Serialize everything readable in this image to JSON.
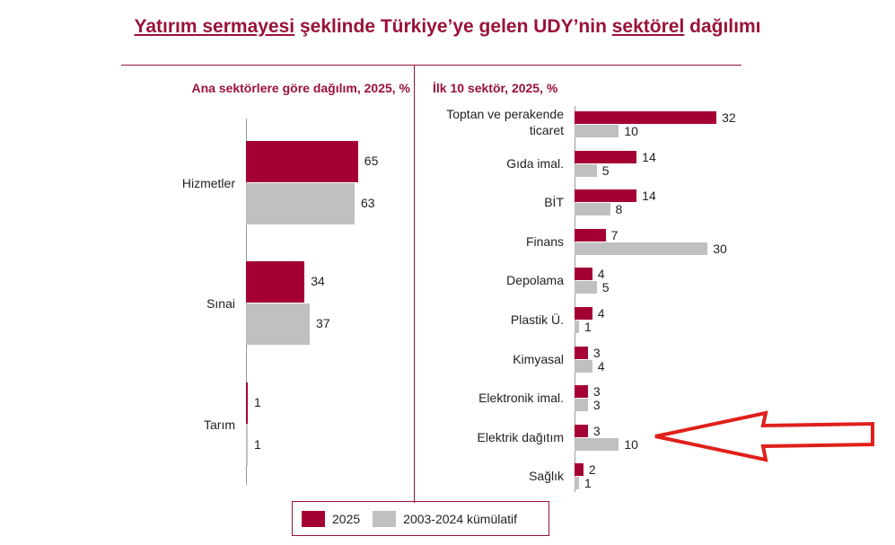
{
  "title": {
    "part1": "Yatırım sermayesi",
    "part2": " şeklinde Türkiye’ye gelen UDY’nin ",
    "part3": "sektörel",
    "part4": " dağılımı"
  },
  "colors": {
    "series_2025": "#A50034",
    "series_cum": "#C0C0C0",
    "accent": "#9A1238",
    "arrow": "#E0201B"
  },
  "legend": [
    "2025",
    "2003-2024 kümülatif"
  ],
  "annotation": {
    "type": "red-outline-arrow",
    "points_to": "Elektrik dağıtım"
  },
  "chart_data": [
    {
      "type": "bar",
      "orientation": "horizontal",
      "title": "Ana sektörlere göre dağılım, 2025, %",
      "categories": [
        "Hizmetler",
        "Sınai",
        "Tarım"
      ],
      "series": [
        {
          "name": "2025",
          "values": [
            65,
            34,
            1
          ]
        },
        {
          "name": "2003-2024 kümülatif",
          "values": [
            63,
            37,
            1
          ]
        }
      ]
    },
    {
      "type": "bar",
      "orientation": "horizontal",
      "title": "İlk 10 sektör, 2025, %",
      "categories": [
        "Toptan ve perakende ticaret",
        "Gıda imal.",
        "BİT",
        "Finans",
        "Depolama",
        "Plastik Ü.",
        "Kimyasal",
        "Elektronik imal.",
        "Elektrik dağıtım",
        "Sağlık"
      ],
      "series": [
        {
          "name": "2025",
          "values": [
            32,
            14,
            14,
            7,
            4,
            4,
            3,
            3,
            3,
            2
          ]
        },
        {
          "name": "2003-2024 kümülatif",
          "values": [
            10,
            5,
            8,
            30,
            5,
            1,
            4,
            3,
            10,
            1
          ]
        }
      ]
    }
  ]
}
